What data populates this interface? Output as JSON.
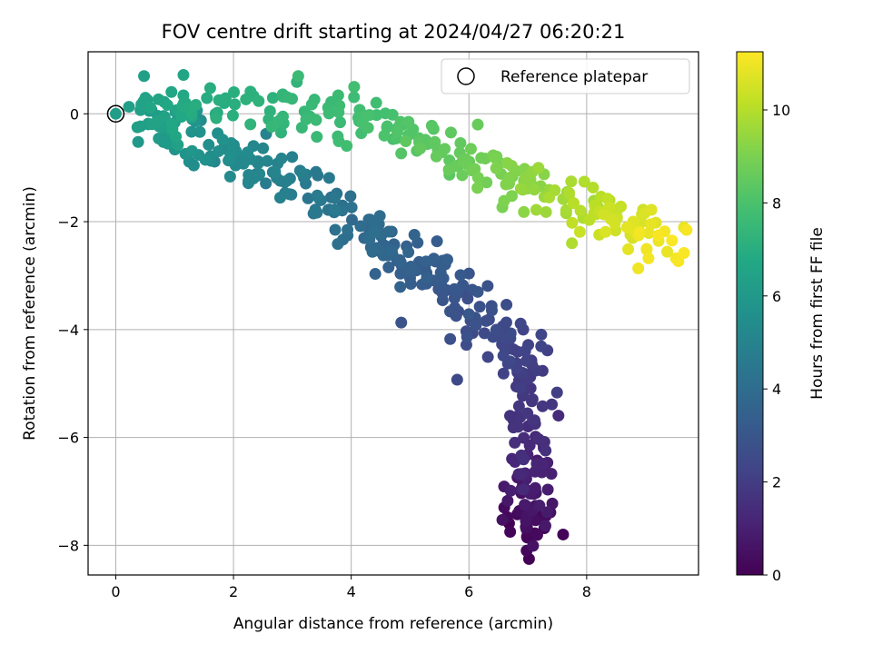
{
  "chart_data": {
    "type": "scatter",
    "title": "FOV centre drift starting at 2024/04/27 06:20:21",
    "xlabel": "Angular distance from reference (arcmin)",
    "ylabel": "Rotation from reference (arcmin)",
    "xlim": [
      -0.47,
      9.9
    ],
    "ylim": [
      -8.55,
      1.15
    ],
    "xticks": [
      0,
      2,
      4,
      6,
      8
    ],
    "yticks": [
      0,
      -2,
      -4,
      -6,
      -8
    ],
    "xtick_labels": [
      "0",
      "2",
      "4",
      "6",
      "8"
    ],
    "ytick_labels": [
      "0",
      "−2",
      "−4",
      "−6",
      "−8"
    ],
    "grid": true,
    "legend": {
      "position": "top-right",
      "entries": [
        "Reference platepar"
      ]
    },
    "reference_point": {
      "x": 0,
      "y": 0
    },
    "colormap": "viridis",
    "colorbar": {
      "label": "Hours from first FF file",
      "range": [
        0,
        11.25
      ],
      "ticks": [
        0,
        2,
        4,
        6,
        8,
        10
      ],
      "tick_labels": [
        "0",
        "2",
        "4",
        "6",
        "8",
        "10"
      ]
    },
    "series": [
      {
        "anchors": [
          {
            "x": 7.0,
            "y": -7.8,
            "t": 0.0
          },
          {
            "x": 7.0,
            "y": -7.2,
            "t": 0.6
          },
          {
            "x": 7.0,
            "y": -6.6,
            "t": 1.1
          },
          {
            "x": 7.0,
            "y": -5.8,
            "t": 1.6
          },
          {
            "x": 6.85,
            "y": -4.8,
            "t": 2.0
          },
          {
            "x": 6.6,
            "y": -4.2,
            "t": 2.4
          },
          {
            "x": 6.0,
            "y": -3.6,
            "t": 2.8
          },
          {
            "x": 5.5,
            "y": -3.0,
            "t": 3.2
          },
          {
            "x": 4.9,
            "y": -2.7,
            "t": 3.5
          },
          {
            "x": 4.3,
            "y": -2.2,
            "t": 3.9
          },
          {
            "x": 3.6,
            "y": -1.6,
            "t": 4.4
          },
          {
            "x": 2.8,
            "y": -1.1,
            "t": 4.9
          },
          {
            "x": 2.0,
            "y": -0.8,
            "t": 5.3
          },
          {
            "x": 1.2,
            "y": -0.4,
            "t": 5.8
          },
          {
            "x": 0.4,
            "y": 0.0,
            "t": 6.4
          },
          {
            "x": 1.5,
            "y": 0.2,
            "t": 6.9
          },
          {
            "x": 3.0,
            "y": 0.1,
            "t": 7.4
          },
          {
            "x": 4.2,
            "y": -0.1,
            "t": 7.8
          },
          {
            "x": 5.2,
            "y": -0.5,
            "t": 8.3
          },
          {
            "x": 6.2,
            "y": -1.0,
            "t": 8.8
          },
          {
            "x": 7.0,
            "y": -1.3,
            "t": 9.3
          },
          {
            "x": 8.0,
            "y": -1.7,
            "t": 10.0
          },
          {
            "x": 8.8,
            "y": -2.1,
            "t": 10.6
          },
          {
            "x": 9.4,
            "y": -2.5,
            "t": 11.2
          }
        ],
        "count": 620,
        "spread_x": 0.22,
        "spread_y": 0.22,
        "outliers": [
          {
            "x": 4.85,
            "y": -3.87,
            "t": 2.9
          },
          {
            "x": 5.8,
            "y": -4.93,
            "t": 2.5
          },
          {
            "x": 6.98,
            "y": -8.1,
            "t": 0.2
          },
          {
            "x": 7.6,
            "y": -7.8,
            "t": 0.1
          },
          {
            "x": 1.15,
            "y": 0.72,
            "t": 6.6
          },
          {
            "x": 0.48,
            "y": 0.7,
            "t": 6.3
          },
          {
            "x": 7.75,
            "y": -2.4,
            "t": 9.9
          },
          {
            "x": 6.15,
            "y": -0.2,
            "t": 8.6
          },
          {
            "x": 4.05,
            "y": 0.5,
            "t": 7.8
          },
          {
            "x": 3.1,
            "y": 0.7,
            "t": 7.6
          },
          {
            "x": 9.05,
            "y": -2.68,
            "t": 11.1
          },
          {
            "x": 9.45,
            "y": -2.35,
            "t": 11.2
          },
          {
            "x": 5.0,
            "y": -3.05,
            "t": 3.3
          },
          {
            "x": 6.7,
            "y": -7.75,
            "t": 0.1
          },
          {
            "x": 6.6,
            "y": -7.3,
            "t": 0.3
          }
        ]
      }
    ]
  }
}
